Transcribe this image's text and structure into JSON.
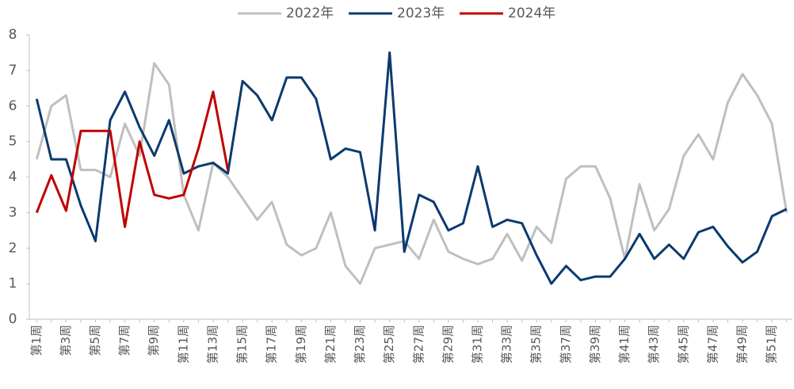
{
  "chart_data": {
    "type": "line",
    "categories": [
      "第1周",
      null,
      "第3周",
      null,
      "第5周",
      null,
      "第7周",
      null,
      "第9周",
      null,
      "第11周",
      null,
      "第13周",
      null,
      "第15周",
      null,
      "第17周",
      null,
      "第19周",
      null,
      "第21周",
      null,
      "第23周",
      null,
      "第25周",
      null,
      "第27周",
      null,
      "第29周",
      null,
      "第31周",
      null,
      "第33周",
      null,
      "第35周",
      null,
      "第37周",
      null,
      "第39周",
      null,
      "第41周",
      null,
      "第43周",
      null,
      "第45周",
      null,
      "第47周",
      null,
      "第49周",
      null,
      "第51周",
      null
    ],
    "series": [
      {
        "name": "2022年",
        "color": "#bfbfbf",
        "values": [
          4.5,
          6.0,
          6.3,
          4.2,
          4.2,
          4.0,
          5.5,
          4.6,
          7.2,
          6.6,
          3.5,
          2.5,
          4.4,
          4.0,
          3.4,
          2.8,
          3.3,
          2.1,
          1.8,
          2.0,
          3.0,
          1.5,
          1.0,
          2.0,
          2.1,
          2.2,
          1.7,
          2.8,
          1.9,
          1.7,
          1.55,
          1.7,
          2.4,
          1.65,
          2.6,
          2.15,
          3.95,
          4.3,
          4.3,
          3.4,
          1.7,
          3.8,
          2.5,
          3.1,
          4.6,
          5.2,
          4.5,
          6.1,
          6.9,
          6.3,
          5.5,
          3.0
        ]
      },
      {
        "name": "2023年",
        "color": "#0b3a6f",
        "values": [
          6.2,
          4.5,
          4.5,
          3.2,
          2.2,
          5.6,
          6.4,
          5.4,
          4.6,
          5.6,
          4.1,
          4.3,
          4.4,
          4.1,
          6.7,
          6.3,
          5.6,
          6.8,
          6.8,
          6.2,
          4.5,
          4.8,
          4.7,
          2.5,
          7.5,
          1.9,
          3.5,
          3.3,
          2.5,
          2.7,
          4.3,
          2.6,
          2.8,
          2.7,
          1.8,
          1.0,
          1.5,
          1.1,
          1.2,
          1.2,
          1.7,
          2.4,
          1.7,
          2.1,
          1.7,
          2.45,
          2.6,
          2.05,
          1.6,
          1.9,
          2.9,
          3.1
        ]
      },
      {
        "name": "2024年",
        "color": "#c00000",
        "values": [
          3.0,
          4.05,
          3.05,
          5.3,
          5.3,
          5.3,
          2.6,
          5.0,
          3.5,
          3.4,
          3.5,
          4.8,
          6.4,
          4.2,
          null,
          null,
          null,
          null,
          null,
          null,
          null,
          null,
          null,
          null,
          null,
          null,
          null,
          null,
          null,
          null,
          null,
          null,
          null,
          null,
          null,
          null,
          null,
          null,
          null,
          null,
          null,
          null,
          null,
          null,
          null,
          null,
          null,
          null,
          null,
          null,
          null,
          null
        ]
      }
    ],
    "ylim": [
      0,
      8
    ],
    "yticks": [
      0,
      1,
      2,
      3,
      4,
      5,
      6,
      7,
      8
    ],
    "grid": false,
    "legend": "top"
  }
}
